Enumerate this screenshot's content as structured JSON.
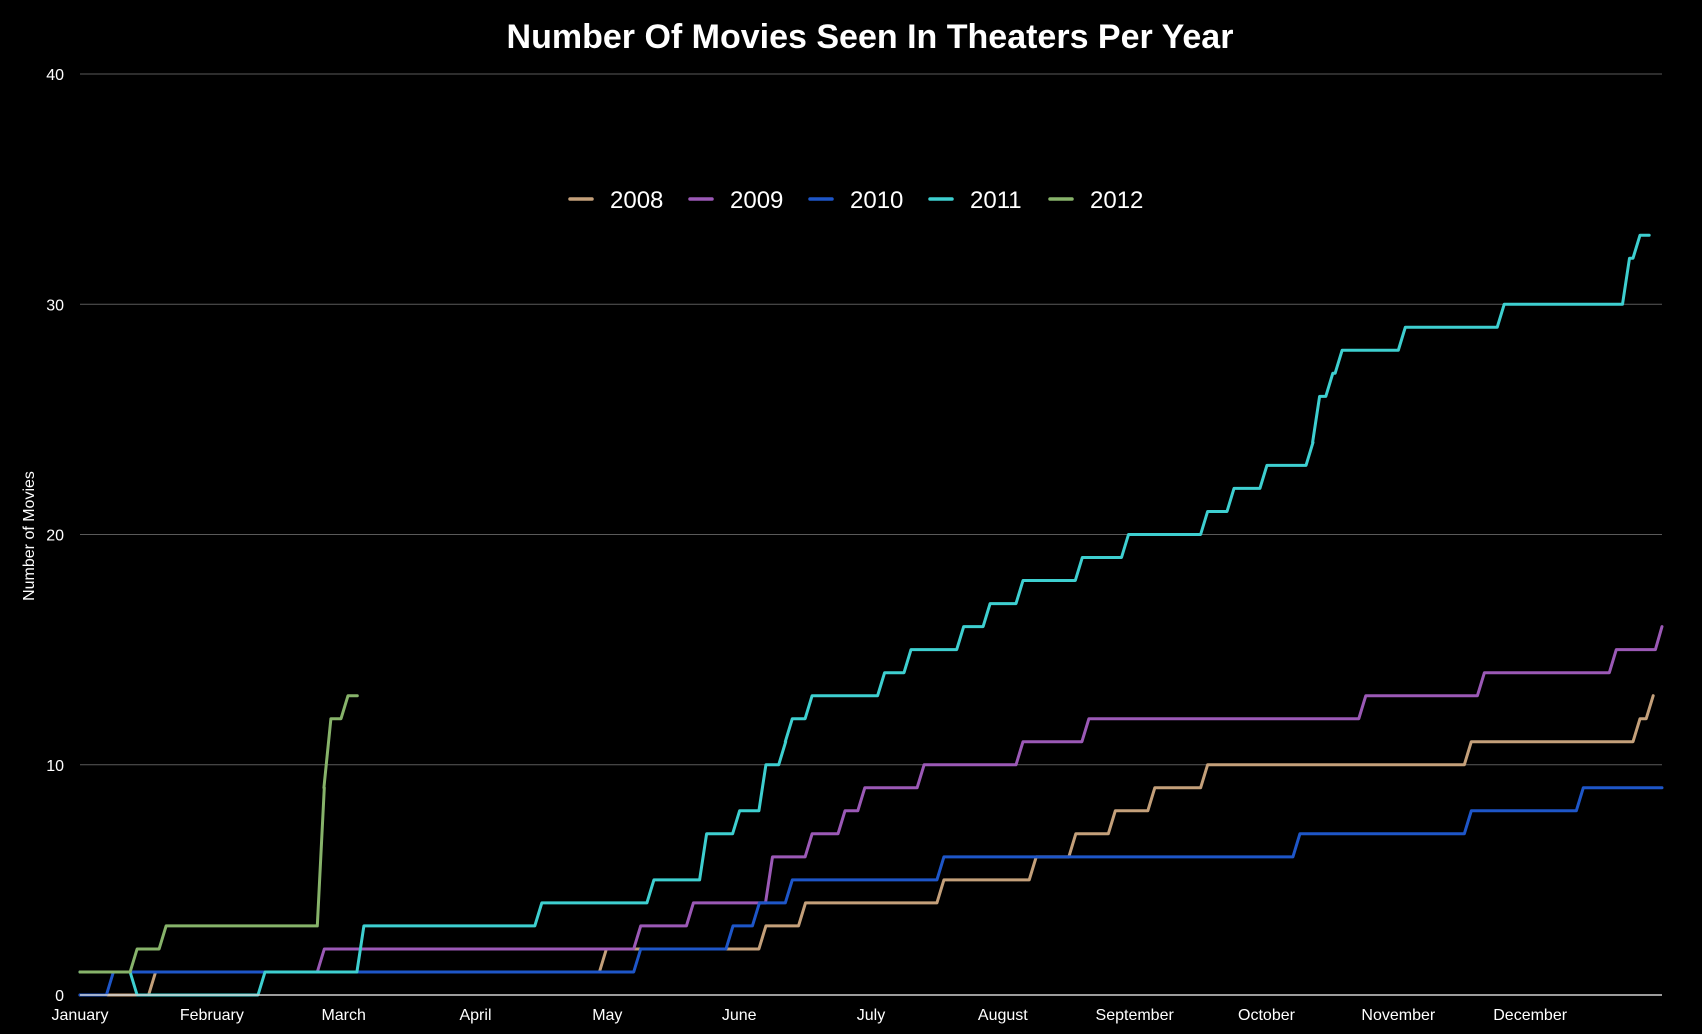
{
  "chart_data": {
    "type": "line",
    "title": "Number Of Movies Seen In Theaters Per Year",
    "xlabel": "",
    "ylabel": "Number of Movies",
    "x_tick_labels": [
      "January",
      "February",
      "March",
      "April",
      "May",
      "June",
      "July",
      "August",
      "September",
      "October",
      "November",
      "December"
    ],
    "x_unit": "month (0 = January 1, 12 = December 31)",
    "ylim": [
      0,
      40
    ],
    "y_ticks": [
      0,
      10,
      20,
      30,
      40
    ],
    "grid": true,
    "legend_position": "top-center",
    "step": true,
    "series": [
      {
        "name": "2008",
        "color": "#c4a07a",
        "x": [
          0,
          0.52,
          3.94,
          5.15,
          5.45,
          6.5,
          7.2,
          7.5,
          7.8,
          8.1,
          8.5,
          8.6,
          10.5,
          11.78,
          11.88
        ],
        "y": [
          0,
          1,
          2,
          3,
          4,
          5,
          6,
          7,
          8,
          9,
          10,
          10,
          11,
          12,
          13
        ]
      },
      {
        "name": "2009",
        "color": "#9b59b6",
        "x": [
          0,
          1.8,
          4.2,
          4.6,
          5.2,
          5.5,
          5.75,
          5.9,
          6.35,
          7.1,
          7.6,
          9.7,
          10.6,
          11.6,
          11.95
        ],
        "y": [
          1,
          2,
          3,
          4,
          6,
          7,
          8,
          9,
          10,
          11,
          12,
          13,
          14,
          15,
          16
        ]
      },
      {
        "name": "2010",
        "color": "#1e56c8",
        "x": [
          0,
          0.2,
          4.2,
          4.9,
          5.1,
          5.35,
          6.5,
          9.2,
          10.5,
          11.35,
          12
        ],
        "y": [
          0,
          1,
          2,
          3,
          4,
          5,
          6,
          7,
          8,
          9,
          9
        ]
      },
      {
        "name": "2011",
        "color": "#3ecfd0",
        "x": [
          0,
          0.38,
          1.35,
          2.1,
          3.45,
          4.3,
          4.7,
          4.95,
          5.15,
          5.3,
          5.35,
          5.5,
          6.05,
          6.25,
          6.65,
          6.85,
          7.1,
          7.55,
          7.9,
          8.5,
          8.7,
          8.95,
          9.3,
          9.35,
          9.45,
          9.52,
          10.0,
          10.75,
          11.7,
          11.78,
          11.85
        ],
        "y": [
          1,
          0,
          1,
          3,
          4,
          5,
          7,
          8,
          10,
          11,
          12,
          13,
          14,
          15,
          16,
          17,
          18,
          19,
          20,
          21,
          22,
          23,
          24,
          26,
          27,
          28,
          29,
          30,
          32,
          33,
          33
        ]
      },
      {
        "name": "2012",
        "color": "#87b36a",
        "x": [
          0,
          0.38,
          0.6,
          1.8,
          1.85,
          1.98,
          2.05
        ],
        "y": [
          1,
          2,
          3,
          9,
          12,
          13,
          13
        ]
      }
    ]
  }
}
